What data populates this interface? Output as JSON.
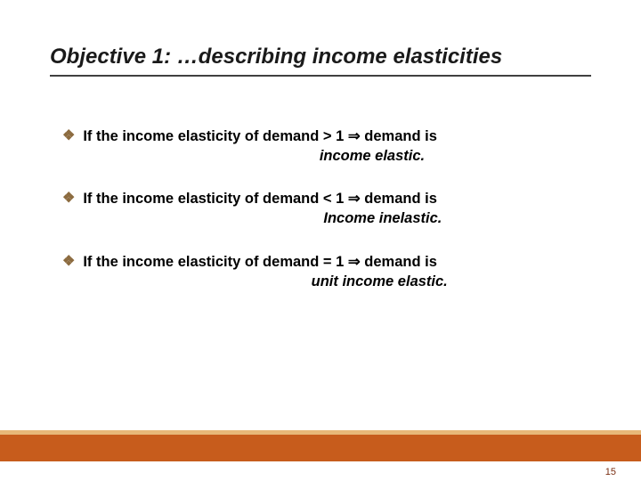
{
  "title": "Objective 1: …describing income elasticities",
  "bullets": [
    {
      "line1_a": "If the income elasticity of demand > 1 ",
      "arrow": "⇒",
      "line1_b": " demand is",
      "line2_pad": "                                                               ",
      "term": "income elastic."
    },
    {
      "line1_a": "If the income elasticity of demand < 1 ",
      "arrow": "⇒",
      "line1_b": " demand is",
      "line2_pad": "                                                                ",
      "term": "Income inelastic."
    },
    {
      "line1_a": "If the income elasticity of demand = 1 ",
      "arrow": "⇒",
      "line1_b": " demand is",
      "line2_pad": "                                                             ",
      "term": "unit income elastic."
    }
  ],
  "page_number": "15",
  "colors": {
    "diamond": "#8c6b3f",
    "bar": "#c75c1c",
    "bar_top": "#e8b878",
    "page_num": "#7a2e12"
  }
}
